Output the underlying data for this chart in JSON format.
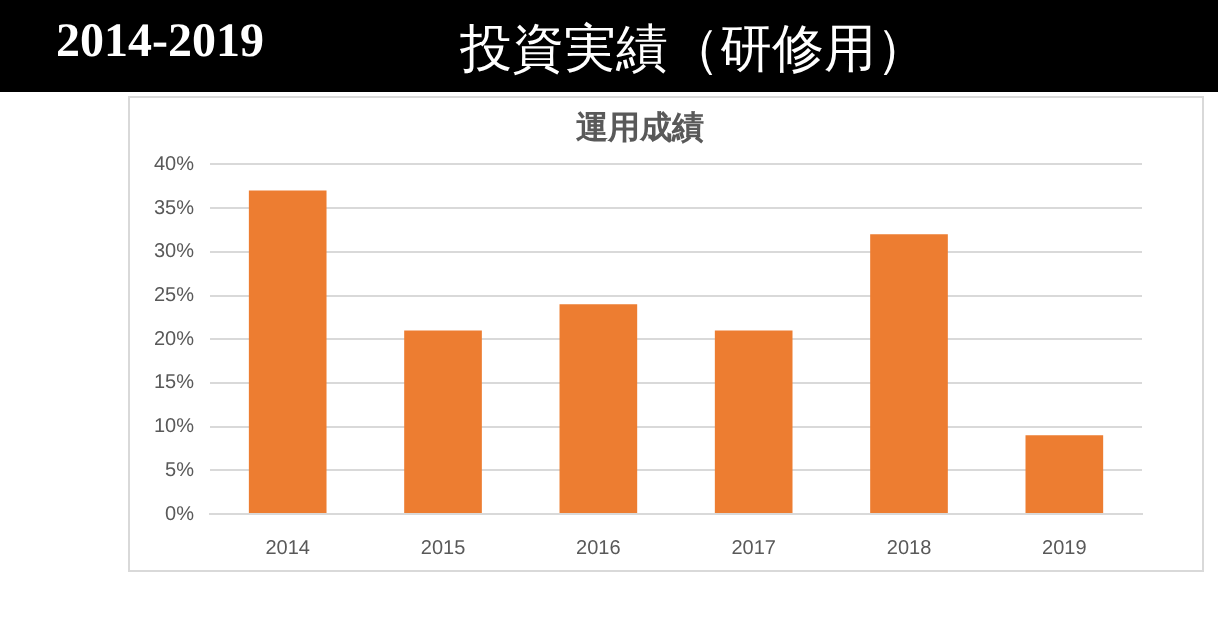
{
  "chart_data": {
    "type": "bar",
    "title": "投資実績（研修用）",
    "subtitle": "運用成績",
    "annotations": [
      "2014-2019"
    ],
    "categories": [
      "2014",
      "2015",
      "2016",
      "2017",
      "2018",
      "2019"
    ],
    "values": [
      37,
      21,
      24,
      21,
      32,
      9
    ],
    "color": "#ed7d31",
    "ylim": [
      0,
      40
    ],
    "yticks": [
      {
        "value": 0,
        "label": "0%"
      },
      {
        "value": 5,
        "label": "5%"
      },
      {
        "value": 10,
        "label": "10%"
      },
      {
        "value": 15,
        "label": "15%"
      },
      {
        "value": 20,
        "label": "20%"
      },
      {
        "value": 25,
        "label": "25%"
      },
      {
        "value": 30,
        "label": "30%"
      },
      {
        "value": 35,
        "label": "35%"
      },
      {
        "value": 40,
        "label": "40%"
      }
    ],
    "grid": "y",
    "legend": false
  }
}
